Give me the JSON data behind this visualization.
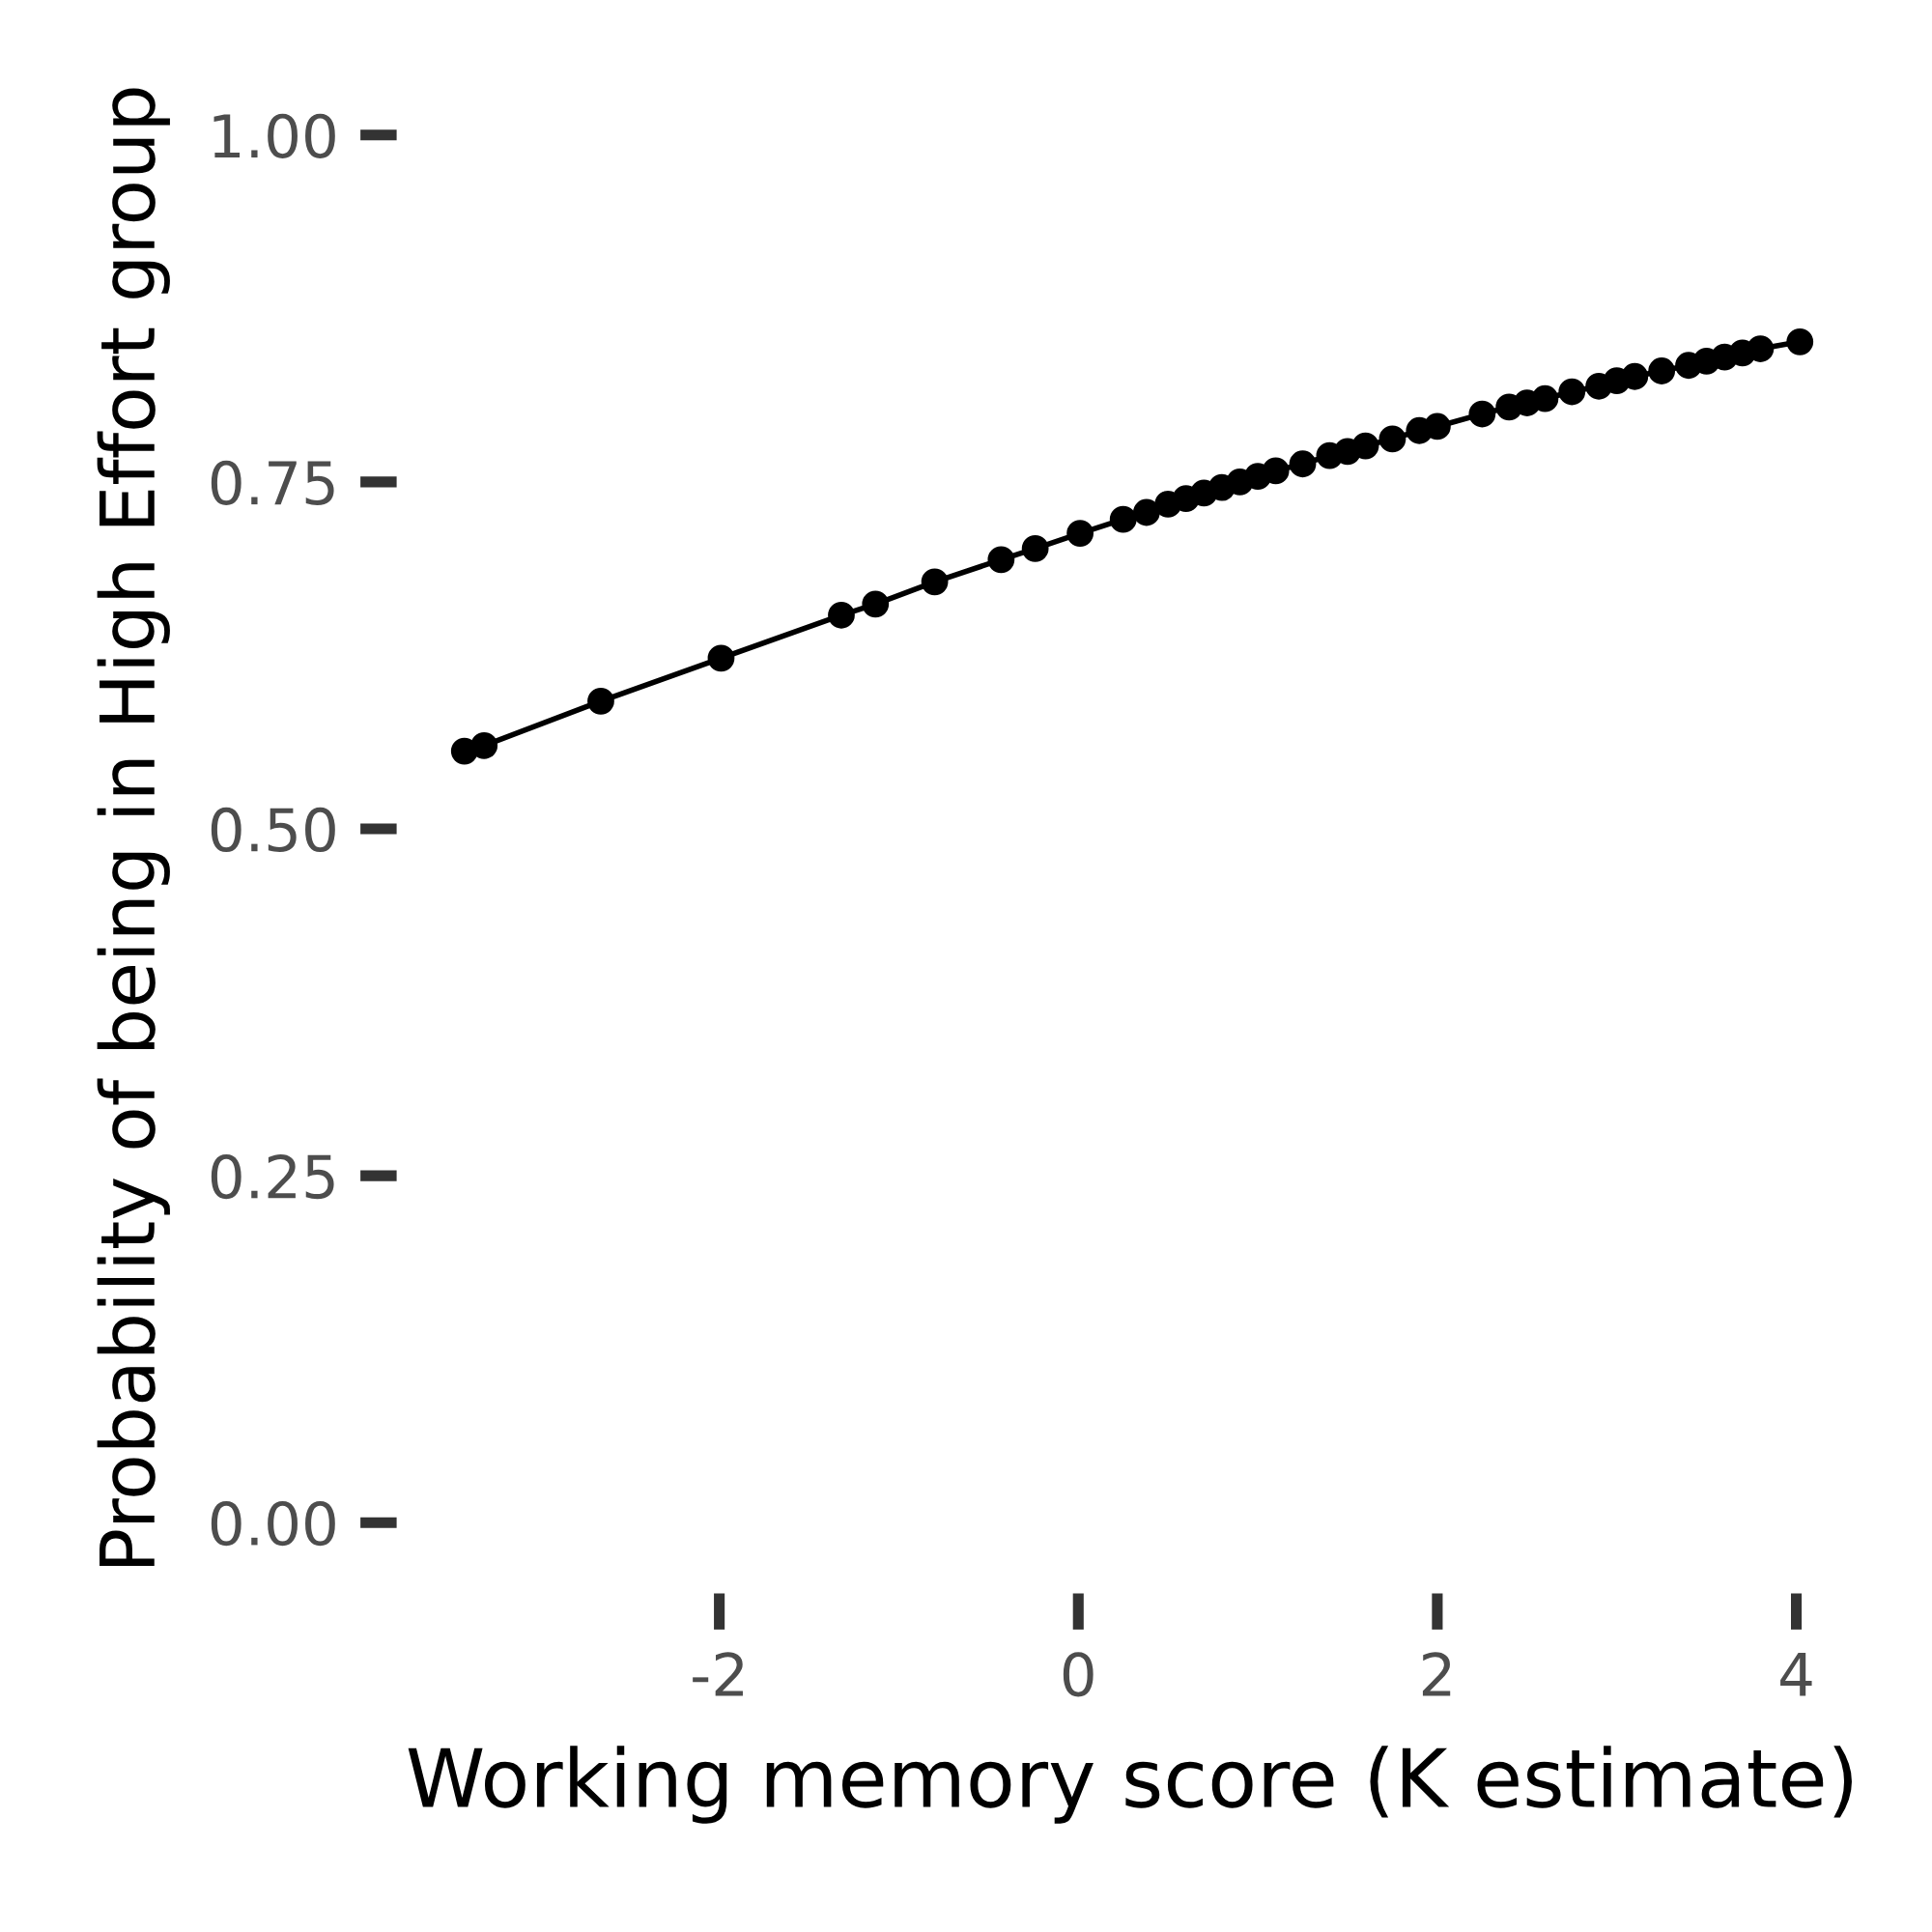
{
  "chart_data": {
    "type": "line",
    "xlabel": "Working memory score (K estimate)",
    "ylabel": "Probability of being in High Effort group",
    "x": [
      -3.42,
      -3.31,
      -2.66,
      -1.99,
      -1.32,
      -1.13,
      -0.8,
      -0.43,
      -0.24,
      0.01,
      0.25,
      0.38,
      0.5,
      0.6,
      0.7,
      0.8,
      0.9,
      1.0,
      1.1,
      1.25,
      1.4,
      1.5,
      1.6,
      1.75,
      1.9,
      2.0,
      2.25,
      2.4,
      2.5,
      2.6,
      2.75,
      2.9,
      3.0,
      3.1,
      3.25,
      3.4,
      3.5,
      3.6,
      3.7,
      3.8,
      4.02
    ],
    "series": [
      {
        "color": "#000000",
        "values": [
          0.556,
          0.56,
          0.592,
          0.623,
          0.654,
          0.662,
          0.678,
          0.694,
          0.702,
          0.713,
          0.723,
          0.728,
          0.734,
          0.738,
          0.742,
          0.746,
          0.75,
          0.754,
          0.758,
          0.763,
          0.769,
          0.772,
          0.776,
          0.781,
          0.787,
          0.79,
          0.799,
          0.804,
          0.807,
          0.81,
          0.815,
          0.819,
          0.823,
          0.826,
          0.83,
          0.834,
          0.837,
          0.84,
          0.843,
          0.846,
          0.851
        ]
      }
    ],
    "xlim": [
      -3.79,
      4.39
    ],
    "xticks": [
      {
        "value": -2,
        "label": "-2"
      },
      0,
      2,
      4
    ],
    "ylim": [
      -0.05,
      1.05
    ],
    "yticks": [
      {
        "value": 0,
        "label": "0.00"
      },
      {
        "value": 0.25,
        "label": "0.25"
      },
      {
        "value": 0.5,
        "label": "0.50"
      },
      {
        "value": 0.75,
        "label": "0.75"
      },
      {
        "value": 1,
        "label": "1.00"
      }
    ],
    "grid": false,
    "legend": false,
    "marker": "circle",
    "line_style": "solid"
  }
}
